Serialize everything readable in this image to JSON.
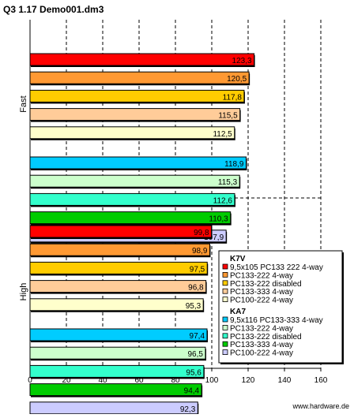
{
  "chart_data": {
    "type": "bar",
    "orientation": "horizontal",
    "title": "Q3 1.17 Demo001.dm3",
    "watermark": "www.hardware.de",
    "xlim": [
      0,
      160
    ],
    "xticks": [
      0,
      20,
      40,
      60,
      80,
      100,
      120,
      140,
      160
    ],
    "grid": true,
    "legend_position": "right",
    "groups": [
      {
        "label": "Fast",
        "bars": [
          {
            "series": "K7V · 9,5x105 PC133 222 4-way",
            "value": 123.3,
            "label": "123,3",
            "color": "#ff0000"
          },
          {
            "series": "K7V · PC133-222 4-way",
            "value": 120.5,
            "label": "120,5",
            "color": "#ff9933"
          },
          {
            "series": "K7V · PC133-222 disabled",
            "value": 117.8,
            "label": "117,8",
            "color": "#ffcc00"
          },
          {
            "series": "K7V · PC133-333 4-way",
            "value": 115.5,
            "label": "115,5",
            "color": "#ffcc99"
          },
          {
            "series": "K7V · PC100-222 4-way",
            "value": 112.5,
            "label": "112,5",
            "color": "#ffffcc"
          },
          {
            "series": "KA7 · 9,5x116 PC133-333 4-way",
            "value": 118.9,
            "label": "118,9",
            "color": "#00ccff"
          },
          {
            "series": "KA7 · PC133-222 4-way",
            "value": 115.3,
            "label": "115,3",
            "color": "#ccffcc"
          },
          {
            "series": "KA7 · PC133-222 disabled",
            "value": 112.6,
            "label": "112,6",
            "color": "#33ffcc"
          },
          {
            "series": "KA7 · PC133-333 4-way",
            "value": 110.3,
            "label": "110,3",
            "color": "#00cc00"
          },
          {
            "series": "KA7 · PC100-222 4-way",
            "value": 107.9,
            "label": "107,9",
            "color": "#ccccff"
          }
        ]
      },
      {
        "label": "High",
        "bars": [
          {
            "series": "K7V · 9,5x105 PC133 222 4-way",
            "value": 99.8,
            "label": "99,8",
            "color": "#ff0000"
          },
          {
            "series": "K7V · PC133-222 4-way",
            "value": 98.9,
            "label": "98,9",
            "color": "#ff9933"
          },
          {
            "series": "K7V · PC133-222 disabled",
            "value": 97.5,
            "label": "97,5",
            "color": "#ffcc00"
          },
          {
            "series": "K7V · PC133-333 4-way",
            "value": 96.8,
            "label": "96,8",
            "color": "#ffcc99"
          },
          {
            "series": "K7V · PC100-222 4-way",
            "value": 95.3,
            "label": "95,3",
            "color": "#ffffcc"
          },
          {
            "series": "KA7 · 9,5x116 PC133-333 4-way",
            "value": 97.4,
            "label": "97,4",
            "color": "#00ccff"
          },
          {
            "series": "KA7 · PC133-222 4-way",
            "value": 96.5,
            "label": "96,5",
            "color": "#ccffcc"
          },
          {
            "series": "KA7 · PC133-222 disabled",
            "value": 95.6,
            "label": "95,6",
            "color": "#33ffcc"
          },
          {
            "series": "KA7 · PC133-333 4-way",
            "value": 94.4,
            "label": "94,4",
            "color": "#00cc00"
          },
          {
            "series": "KA7 · PC100-222 4-way",
            "value": 92.3,
            "label": "92,3",
            "color": "#ccccff"
          }
        ]
      }
    ],
    "legend": [
      {
        "heading": "K7V",
        "items": [
          {
            "label": "9,5x105 PC133 222 4-way",
            "color": "#ff0000"
          },
          {
            "label": "PC133-222 4-way",
            "color": "#ff9933"
          },
          {
            "label": "PC133-222 disabled",
            "color": "#ffcc00"
          },
          {
            "label": "PC133-333 4-way",
            "color": "#ffcc99"
          },
          {
            "label": "PC100-222 4-way",
            "color": "#ffffcc"
          }
        ]
      },
      {
        "heading": "KA7",
        "items": [
          {
            "label": "9,5x116 PC133-333 4-way",
            "color": "#00ccff"
          },
          {
            "label": "PC133-222 4-way",
            "color": "#ccffcc"
          },
          {
            "label": "PC133-222 disabled",
            "color": "#33ffcc"
          },
          {
            "label": "PC133-333 4-way",
            "color": "#00cc00"
          },
          {
            "label": "PC100-222 4-way",
            "color": "#ccccff"
          }
        ]
      }
    ]
  }
}
